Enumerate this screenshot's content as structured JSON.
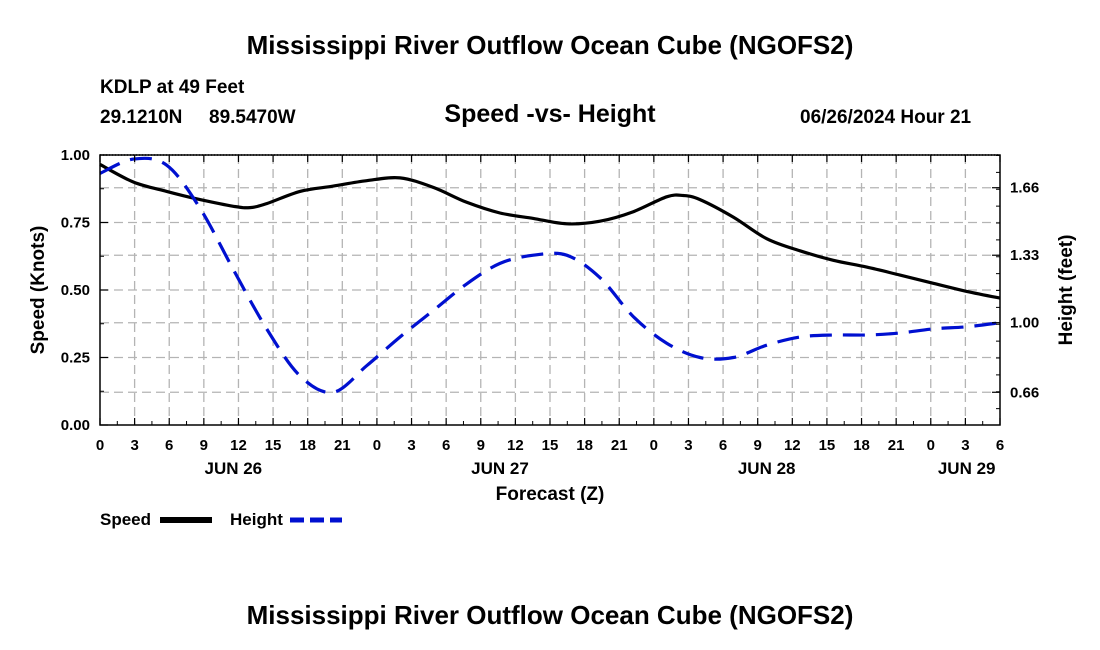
{
  "page": {
    "main_title": "Mississippi River Outflow Ocean Cube (NGOFS2)",
    "station": "KDLP at 49 Feet",
    "coords_lat": "29.1210N",
    "coords_lon": "89.5470W",
    "datetime": "06/26/2024 Hour 21",
    "footer_title": "Mississippi River Outflow Ocean Cube (NGOFS2)"
  },
  "legend": {
    "speed_label": "Speed",
    "height_label": "Height"
  },
  "chart_data": {
    "type": "line",
    "title": "Speed -vs- Height",
    "xlabel": "Forecast (Z)",
    "ylabel_left": "Speed (Knots)",
    "ylabel_right": "Height (feet)",
    "x_range": [
      0,
      81
    ],
    "x_tick_labels": [
      "0",
      "3",
      "6",
      "9",
      "12",
      "15",
      "18",
      "21",
      "0",
      "3",
      "6",
      "9",
      "12",
      "15",
      "18",
      "21",
      "0",
      "3",
      "6",
      "9",
      "12",
      "15",
      "18",
      "21",
      "0",
      "3",
      "6"
    ],
    "date_labels": [
      {
        "x": 12,
        "label": "JUN 26"
      },
      {
        "x": 36,
        "label": "JUN 27"
      },
      {
        "x": 60,
        "label": "JUN 28"
      },
      {
        "x": 78,
        "label": "JUN 29"
      }
    ],
    "y_left": {
      "range": [
        0,
        1.0
      ],
      "ticks": [
        "0.00",
        "0.25",
        "0.50",
        "0.75",
        "1.00"
      ]
    },
    "y_right": {
      "range": [
        0.5,
        1.82
      ],
      "ticks": [
        "0.66",
        "1.00",
        "1.33",
        "1.66"
      ]
    },
    "grid": true,
    "series": [
      {
        "name": "Speed",
        "axis": "left",
        "color": "#000000",
        "dash": false,
        "x": [
          0,
          3,
          6,
          9,
          12,
          13.5,
          15,
          18,
          21,
          24,
          27,
          30,
          33,
          36,
          39,
          42,
          45,
          48,
          51,
          52.5,
          54,
          57,
          60,
          63,
          66,
          69,
          72,
          75,
          78,
          81
        ],
        "values": [
          0.965,
          0.9,
          0.865,
          0.835,
          0.81,
          0.805,
          0.82,
          0.865,
          0.885,
          0.905,
          0.915,
          0.88,
          0.825,
          0.785,
          0.765,
          0.745,
          0.755,
          0.79,
          0.845,
          0.85,
          0.835,
          0.77,
          0.69,
          0.645,
          0.61,
          0.585,
          0.555,
          0.525,
          0.495,
          0.47
        ]
      },
      {
        "name": "Height",
        "axis": "right",
        "color": "#0010d0",
        "dash": true,
        "x": [
          0,
          3,
          6,
          9,
          12,
          15,
          18,
          21,
          24,
          27,
          30,
          33,
          36,
          39,
          42,
          45,
          48,
          51,
          54,
          57,
          60,
          63,
          66,
          69,
          72,
          75,
          78,
          81
        ],
        "values": [
          1.73,
          1.8,
          1.77,
          1.56,
          1.26,
          0.97,
          0.74,
          0.66,
          0.79,
          0.93,
          1.06,
          1.19,
          1.29,
          1.33,
          1.33,
          1.22,
          1.03,
          0.9,
          0.83,
          0.83,
          0.89,
          0.93,
          0.94,
          0.94,
          0.95,
          0.97,
          0.98,
          1.0
        ]
      }
    ]
  }
}
